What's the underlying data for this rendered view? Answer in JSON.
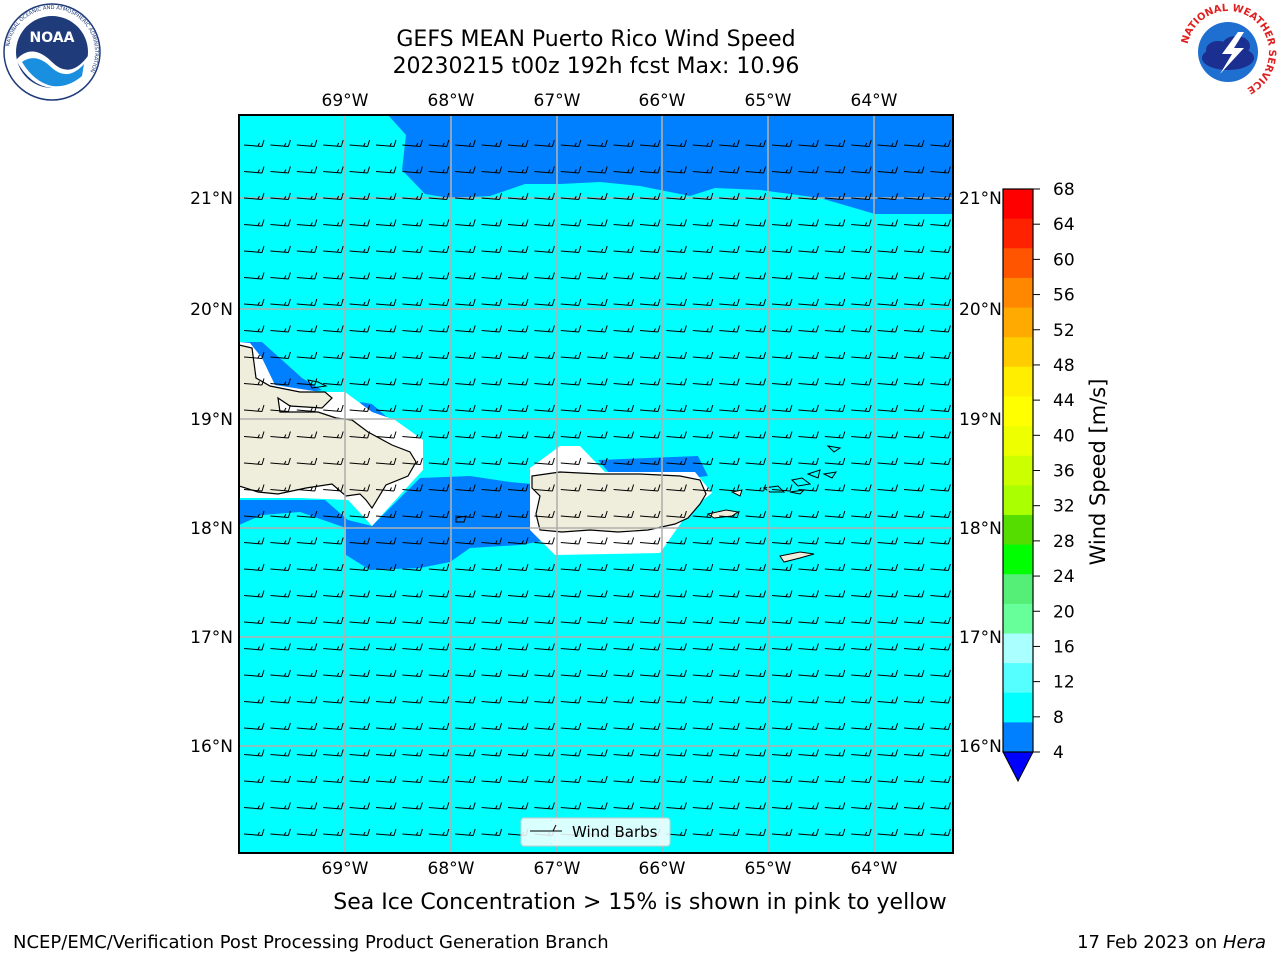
{
  "header": {
    "title_line1": "GEFS MEAN Puerto Rico Wind Speed",
    "title_line2": "20230215 t00z 192h fcst   Max: 10.96"
  },
  "logos": {
    "noaa_text": "NOAA",
    "noaa_ring_text": "NATIONAL OCEANIC AND ATMOSPHERIC ADMINISTRATION",
    "noaa_bottom_text": "U.S. DEPARTMENT OF COMMERCE",
    "nws_ring_text": "NATIONAL WEATHER SERVICE"
  },
  "map": {
    "lon_labels": [
      "69°W",
      "68°W",
      "67°W",
      "66°W",
      "65°W",
      "64°W"
    ],
    "lat_labels": [
      "21°N",
      "20°N",
      "19°N",
      "18°N",
      "17°N",
      "16°N"
    ],
    "legend_label": "Wind Barbs",
    "colors": {
      "sea_cyan": "#00ffff",
      "low_blue": "#0080ff",
      "land": "#efeddb",
      "grid": "#b0b0b0"
    }
  },
  "colorbar": {
    "label": "Wind Speed [m/s]",
    "ticks": [
      "68",
      "64",
      "60",
      "56",
      "52",
      "48",
      "44",
      "40",
      "36",
      "32",
      "28",
      "24",
      "20",
      "16",
      "12",
      "8",
      "4"
    ],
    "colors_top_to_bottom": [
      "#ff0000",
      "#ff2200",
      "#ff5500",
      "#ff8800",
      "#ffaa00",
      "#ffcc00",
      "#ffee00",
      "#ffff00",
      "#eeff00",
      "#ccff00",
      "#aaff00",
      "#55dd00",
      "#00ff00",
      "#55ee77",
      "#66ff99",
      "#aaffff",
      "#55ffff",
      "#00ffff",
      "#0080ff"
    ],
    "extend_color": "#0000ff"
  },
  "note": "Sea Ice Concentration > 15% is shown in pink to yellow",
  "footer": {
    "left": "NCEP/EMC/Verification Post Processing Product Generation Branch",
    "right_prefix": "17 Feb 2023 on ",
    "right_host": "Hera"
  }
}
